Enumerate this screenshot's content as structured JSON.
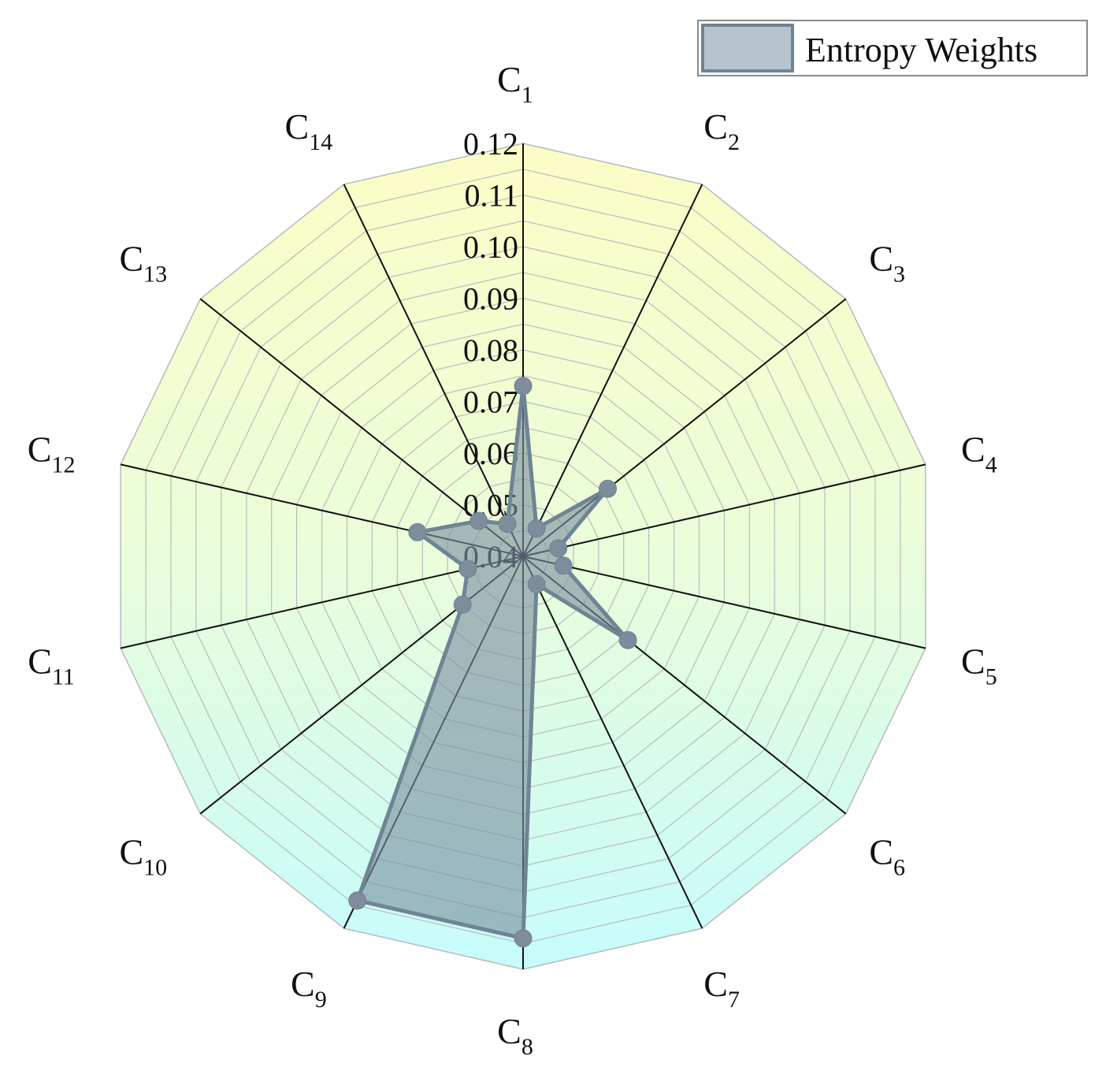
{
  "chart_data": {
    "type": "radar",
    "title": "",
    "legend": {
      "label": "Entropy Weights",
      "position": "top-right"
    },
    "radial_axis": {
      "min": 0.04,
      "max": 0.12,
      "minor_step": 0.005,
      "tick_labels": [
        "0.04",
        "0.05",
        "0.06",
        "0.07",
        "0.08",
        "0.09",
        "0.10",
        "0.11",
        "0.12"
      ]
    },
    "categories": [
      {
        "main": "C",
        "sub": "1"
      },
      {
        "main": "C",
        "sub": "2"
      },
      {
        "main": "C",
        "sub": "3"
      },
      {
        "main": "C",
        "sub": "4"
      },
      {
        "main": "C",
        "sub": "5"
      },
      {
        "main": "C",
        "sub": "6"
      },
      {
        "main": "C",
        "sub": "7"
      },
      {
        "main": "C",
        "sub": "8"
      },
      {
        "main": "C",
        "sub": "9"
      },
      {
        "main": "C",
        "sub": "10"
      },
      {
        "main": "C",
        "sub": "11"
      },
      {
        "main": "C",
        "sub": "12"
      },
      {
        "main": "C",
        "sub": "13"
      },
      {
        "main": "C",
        "sub": "14"
      }
    ],
    "series": [
      {
        "name": "Entropy Weights",
        "values": [
          0.073,
          0.046,
          0.061,
          0.047,
          0.048,
          0.066,
          0.046,
          0.114,
          0.114,
          0.055,
          0.051,
          0.061,
          0.051,
          0.047
        ]
      }
    ],
    "colors": {
      "fill": "#7b90a0",
      "stroke": "#6f8494",
      "marker": "#7d8d9c",
      "background_top": "#fcfdc6",
      "background_bottom": "#c6fcfc",
      "grid": "#b8bcbc",
      "spoke": "#111111"
    }
  }
}
